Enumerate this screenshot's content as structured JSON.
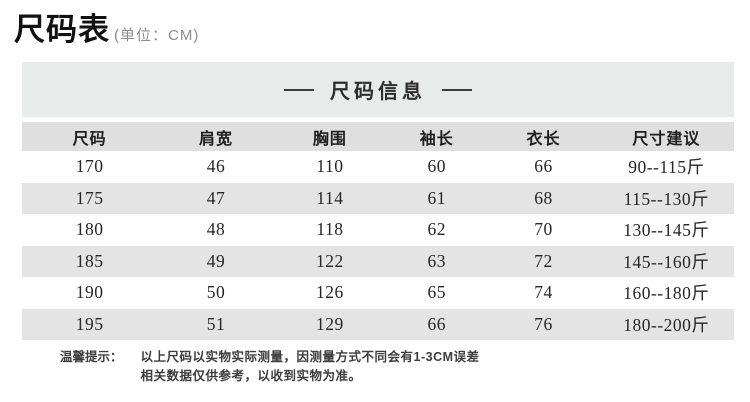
{
  "page": {
    "title": "尺码表",
    "subtitle": "(单位：CM)"
  },
  "section": {
    "heading": "尺码信息"
  },
  "table": {
    "headers": [
      "尺码",
      "肩宽",
      "胸围",
      "袖长",
      "衣长",
      "尺寸建议"
    ],
    "rows": [
      [
        "170",
        "46",
        "110",
        "60",
        "66",
        "90--115斤"
      ],
      [
        "175",
        "47",
        "114",
        "61",
        "68",
        "115--130斤"
      ],
      [
        "180",
        "48",
        "118",
        "62",
        "70",
        "130--145斤"
      ],
      [
        "185",
        "49",
        "122",
        "63",
        "72",
        "145--160斤"
      ],
      [
        "190",
        "50",
        "126",
        "65",
        "74",
        "160--180斤"
      ],
      [
        "195",
        "51",
        "129",
        "66",
        "76",
        "180--200斤"
      ]
    ]
  },
  "note": {
    "label": "温馨提示：",
    "line1": "以上尺码以实物实际测量，因测量方式不同会有1-3CM误差",
    "line2": "相关数据仅供参考，以收到实物为准。"
  },
  "colors": {
    "band_bg": "#e7ecea",
    "header_row_bg": "#dfdfdf",
    "stripe_row_bg": "#e4e4e4",
    "text_dark": "#1f1f1f",
    "subtitle_gray": "#8c8c8c",
    "note_gray": "#3d3d3d"
  }
}
